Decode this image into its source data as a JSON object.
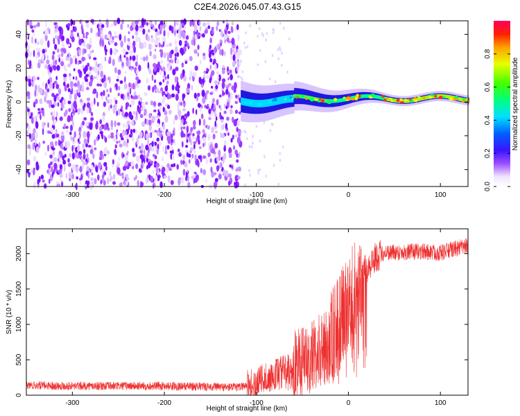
{
  "chart_data": [
    {
      "type": "heatmap",
      "title": "C2E4.2026.045.07.43.G15",
      "xlabel": "Height of straight line (km)",
      "ylabel": "Frequency (Hz)",
      "xlim": [
        -350,
        130
      ],
      "ylim": [
        -50,
        48
      ],
      "xticks": [
        -300,
        -200,
        -100,
        0,
        100
      ],
      "yticks": [
        -40,
        -20,
        0,
        20,
        40
      ],
      "regions": [
        {
          "name": "noise",
          "x_range": [
            -350,
            -117
          ],
          "freq_range": [
            -50,
            48
          ],
          "amplitude_range": [
            0.0,
            0.15
          ]
        },
        {
          "name": "signal-ridge",
          "x_range": [
            -117,
            130
          ],
          "center_freq_hz": 2,
          "spread_hz": [
            12,
            3
          ],
          "amplitude_range": [
            0.2,
            0.9
          ]
        }
      ],
      "colorbar": {
        "label": "Normalized spectral amplitude",
        "range": [
          0,
          1
        ],
        "ticks": [
          "0.0",
          "0.2",
          "0.4",
          "0.6",
          "0.8"
        ]
      }
    },
    {
      "type": "line",
      "xlabel": "Height of straight line (km)",
      "ylabel": "SNR (10 * v/v)",
      "xlim": [
        -350,
        130
      ],
      "ylim": [
        0,
        2350
      ],
      "xticks": [
        -300,
        -200,
        -100,
        0,
        100
      ],
      "yticks": [
        0,
        500,
        1000,
        1500,
        2000
      ],
      "series": [
        {
          "name": "SNR",
          "color": "#ee3030",
          "x": [
            -350,
            -300,
            -250,
            -200,
            -150,
            -120,
            -100,
            -80,
            -60,
            -40,
            -20,
            -10,
            0,
            10,
            20,
            30,
            40,
            60,
            80,
            100,
            120,
            130
          ],
          "values": [
            140,
            130,
            130,
            130,
            120,
            110,
            180,
            300,
            400,
            550,
            750,
            1000,
            1300,
            1600,
            1800,
            1950,
            2020,
            2020,
            2030,
            2010,
            2080,
            2100
          ]
        }
      ]
    }
  ]
}
